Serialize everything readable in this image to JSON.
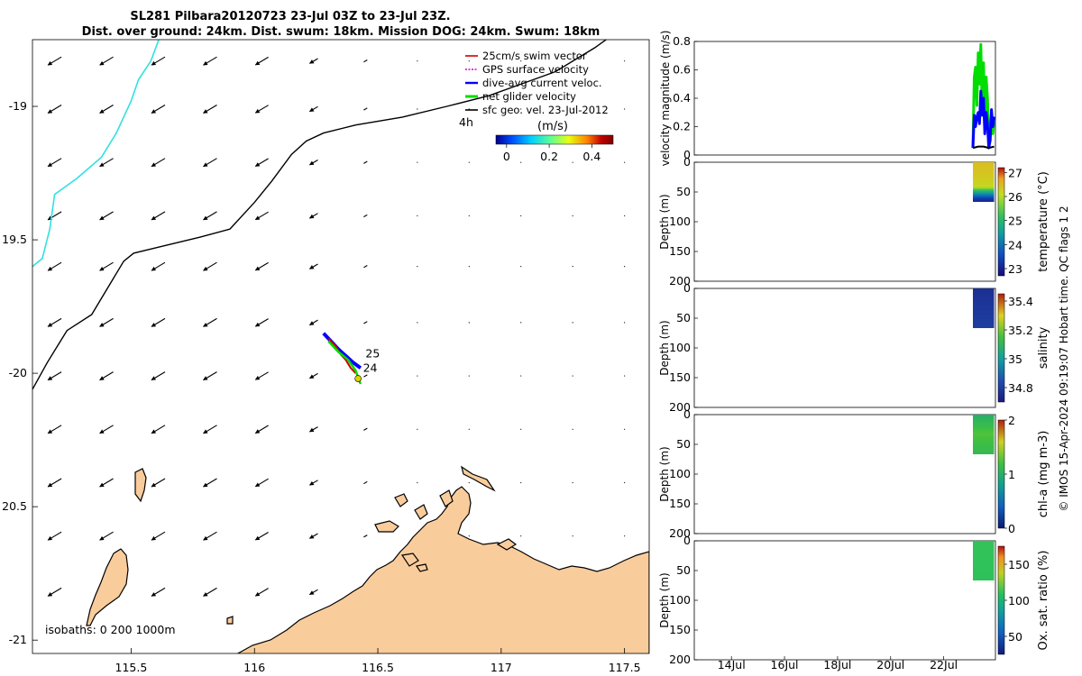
{
  "title_line1": "SL281 Pilbara20120723 23-Jul 03Z to 23-Jul 23Z.",
  "title_line2": "Dist. over ground: 24km. Dist. swum: 18km. Mission DOG: 24km. Swum: 18km",
  "credit": "© IMOS 15-Apr-2024 09:19:07 Hobart time. QC flags 1  2",
  "colors": {
    "land": "#f9cc9c",
    "coast": "#000000",
    "isobath_200": "#000000",
    "isobath_1000": "#33e0e0",
    "swim": "#cc0000",
    "gps": "#cc00cc",
    "current": "#0000ff",
    "net": "#00dd00",
    "sfc": "#000000"
  },
  "chart_data": [
    {
      "type": "map",
      "name": "track-map",
      "xlim": [
        115.1,
        117.6
      ],
      "ylim": [
        -21.05,
        -18.75
      ],
      "xticks": [
        115.5,
        116,
        116.5,
        117,
        117.5
      ],
      "xtick_labels": [
        "115.5",
        "116",
        "116.5",
        "117",
        "117.5"
      ],
      "yticks": [
        -19,
        -19.5,
        -20,
        -20.5,
        -21
      ],
      "ytick_labels": [
        "-19",
        "19.5",
        "-20",
        "20.5",
        "-21"
      ],
      "legend": {
        "position": "top-right",
        "entries": [
          "25cm/s swim vector",
          "GPS surface velocity",
          "dive-avg current veloc.",
          "net glider velocity",
          "sfc geo. vel. 23-Jul-2012"
        ]
      },
      "colorbar": {
        "label": "(m/s)",
        "range": [
          -0.05,
          0.5
        ],
        "ticks": [
          0,
          0.2,
          0.4
        ],
        "tick_labels": [
          "0",
          "0.2",
          "0.4"
        ],
        "colormap": [
          "#00008f",
          "#0050ff",
          "#00d0ff",
          "#60ff90",
          "#e8ff10",
          "#ff8000",
          "#c00000",
          "#800000"
        ]
      },
      "scale_label": "4h",
      "isobaths_label": "isobaths: 0   200  1000m",
      "track_labels": [
        {
          "text": "25",
          "lon": 116.45,
          "lat": -19.94
        },
        {
          "text": "24",
          "lon": 116.44,
          "lat": -19.995
        }
      ],
      "vector_grid": {
        "lons": [
          115.19,
          115.4,
          115.61,
          115.82,
          116.03,
          116.24,
          116.45,
          116.66,
          116.87,
          117.08,
          117.29,
          117.5
        ],
        "lats": [
          -18.83,
          -19.01,
          -19.21,
          -19.41,
          -19.6,
          -19.81,
          -20.01,
          -20.21,
          -20.41,
          -20.61,
          -20.82
        ],
        "west_u": 0.2,
        "east_u": 0.012,
        "west_v": -0.12,
        "east_v": -0.006
      },
      "isobath_1000m": [
        [
          115.1,
          -19.6
        ],
        [
          115.14,
          -19.57
        ],
        [
          115.17,
          -19.46
        ],
        [
          115.19,
          -19.33
        ],
        [
          115.28,
          -19.27
        ],
        [
          115.38,
          -19.19
        ],
        [
          115.44,
          -19.1
        ],
        [
          115.5,
          -18.98
        ],
        [
          115.53,
          -18.9
        ],
        [
          115.58,
          -18.83
        ],
        [
          115.62,
          -18.73
        ],
        [
          115.66,
          -18.62
        ],
        [
          115.76,
          -18.59
        ],
        [
          115.9,
          -18.5
        ],
        [
          116.0,
          -18.45
        ]
      ],
      "isobath_200m": [
        [
          115.1,
          -20.06
        ],
        [
          115.16,
          -19.96
        ],
        [
          115.24,
          -19.84
        ],
        [
          115.34,
          -19.78
        ],
        [
          115.47,
          -19.58
        ],
        [
          115.51,
          -19.55
        ],
        [
          115.6,
          -19.53
        ],
        [
          115.78,
          -19.49
        ],
        [
          115.9,
          -19.46
        ],
        [
          116.0,
          -19.36
        ],
        [
          116.07,
          -19.28
        ],
        [
          116.15,
          -19.18
        ],
        [
          116.21,
          -19.13
        ],
        [
          116.28,
          -19.1
        ],
        [
          116.41,
          -19.07
        ],
        [
          116.6,
          -19.04
        ],
        [
          116.78,
          -19.0
        ],
        [
          116.95,
          -18.96
        ],
        [
          117.1,
          -18.91
        ],
        [
          117.22,
          -18.87
        ],
        [
          117.38,
          -18.78
        ],
        [
          117.5,
          -18.7
        ]
      ],
      "tracks": {
        "current": [
          [
            116.28,
            -19.85
          ],
          [
            116.31,
            -19.88
          ],
          [
            116.34,
            -19.91
          ],
          [
            116.37,
            -19.935
          ],
          [
            116.4,
            -19.96
          ],
          [
            116.43,
            -19.98
          ]
        ],
        "swim": [
          [
            116.3,
            -19.87
          ],
          [
            116.33,
            -19.9
          ],
          [
            116.35,
            -19.93
          ],
          [
            116.37,
            -19.95
          ],
          [
            116.39,
            -19.98
          ],
          [
            116.41,
            -20.0
          ]
        ],
        "net": [
          [
            116.3,
            -19.88
          ],
          [
            116.34,
            -19.92
          ],
          [
            116.38,
            -19.95
          ],
          [
            116.41,
            -19.99
          ],
          [
            116.43,
            -20.04
          ]
        ]
      }
    },
    {
      "type": "line",
      "name": "velocity-panel",
      "ylabel": "velocity magnitude (m/s)",
      "ylim": [
        0,
        0.8
      ],
      "yticks": [
        0,
        0.2,
        0.4,
        0.6,
        0.8
      ],
      "ytick_labels": [
        "0",
        "0.2",
        "0.4",
        "0.6",
        "0.8"
      ],
      "xlim": [
        12.6,
        23.95
      ],
      "series": [
        {
          "color": "#00dd00",
          "x": [
            23.1,
            23.15,
            23.2,
            23.25,
            23.3,
            23.35,
            23.4,
            23.45,
            23.5,
            23.55,
            23.6,
            23.65,
            23.7,
            23.75,
            23.8,
            23.85,
            23.9
          ],
          "values": [
            0.05,
            0.55,
            0.62,
            0.35,
            0.72,
            0.5,
            0.78,
            0.3,
            0.65,
            0.2,
            0.55,
            0.4,
            0.12,
            0.1,
            0.3,
            0.15,
            0.25
          ]
        },
        {
          "color": "#0000ff",
          "x": [
            23.1,
            23.15,
            23.2,
            23.25,
            23.3,
            23.35,
            23.4,
            23.45,
            23.5,
            23.55,
            23.6,
            23.65,
            23.7,
            23.75,
            23.8,
            23.85,
            23.9
          ],
          "values": [
            0.05,
            0.28,
            0.2,
            0.27,
            0.3,
            0.22,
            0.45,
            0.28,
            0.4,
            0.15,
            0.3,
            0.22,
            0.05,
            0.1,
            0.32,
            0.2,
            0.27
          ]
        },
        {
          "color": "#000000",
          "x": [
            23.1,
            23.3,
            23.5,
            23.7,
            23.9
          ],
          "values": [
            0.05,
            0.06,
            0.06,
            0.05,
            0.06
          ]
        }
      ]
    },
    {
      "type": "heatmap",
      "name": "temperature-panel",
      "ylabel": "Depth (m)",
      "cblabel": "temperature (°C)",
      "ylim": [
        0,
        200
      ],
      "yticks": [
        0,
        50,
        100,
        150,
        200
      ],
      "ytick_labels": [
        "0",
        "50",
        "100",
        "150",
        "200"
      ],
      "xlim": [
        12.6,
        23.95
      ],
      "crange": [
        22.7,
        27.2
      ],
      "cticks": [
        27,
        26,
        25,
        24,
        23
      ],
      "ctick_labels": [
        "27",
        "26",
        "25",
        "24",
        "23"
      ],
      "data_x": [
        23.1,
        23.9
      ],
      "profile": [
        {
          "depth": 0,
          "value": 26.1
        },
        {
          "depth": 20,
          "value": 26.0
        },
        {
          "depth": 40,
          "value": 25.8
        },
        {
          "depth": 50,
          "value": 24.2
        },
        {
          "depth": 60,
          "value": 23.2
        },
        {
          "depth": 66,
          "value": 22.9
        }
      ]
    },
    {
      "type": "heatmap",
      "name": "salinity-panel",
      "ylabel": "Depth (m)",
      "cblabel": "salinity",
      "ylim": [
        0,
        200
      ],
      "yticks": [
        0,
        50,
        100,
        150,
        200
      ],
      "ytick_labels": [
        "0",
        "50",
        "100",
        "150",
        "200"
      ],
      "xlim": [
        12.6,
        23.95
      ],
      "crange": [
        34.7,
        35.45
      ],
      "cticks": [
        35.4,
        35.2,
        35,
        34.8
      ],
      "ctick_labels": [
        "35.4",
        "35.2",
        "35",
        "34.8"
      ],
      "data_x": [
        23.1,
        23.9
      ],
      "profile": [
        {
          "depth": 0,
          "value": 34.76
        },
        {
          "depth": 30,
          "value": 34.78
        },
        {
          "depth": 66,
          "value": 34.8
        }
      ]
    },
    {
      "type": "heatmap",
      "name": "chla-panel",
      "ylabel": "Depth (m)",
      "cblabel": "chl-a (mg m-3)",
      "ylim": [
        0,
        200
      ],
      "yticks": [
        0,
        50,
        100,
        150,
        200
      ],
      "ytick_labels": [
        "0",
        "50",
        "100",
        "150",
        "200"
      ],
      "xlim": [
        12.6,
        23.95
      ],
      "crange": [
        0,
        2
      ],
      "cticks": [
        2,
        1,
        0
      ],
      "ctick_labels": [
        "2",
        "1",
        "0"
      ],
      "data_x": [
        23.1,
        23.9
      ],
      "profile": [
        {
          "depth": 0,
          "value": 1.0
        },
        {
          "depth": 30,
          "value": 1.25
        },
        {
          "depth": 66,
          "value": 1.1
        }
      ]
    },
    {
      "type": "heatmap",
      "name": "oxygen-panel",
      "ylabel": "Depth (m)",
      "cblabel": "Ox. sat. ratio (%)",
      "ylim": [
        0,
        200
      ],
      "yticks": [
        0,
        50,
        100,
        150,
        200
      ],
      "ytick_labels": [
        "0",
        "50",
        "100",
        "150",
        "200"
      ],
      "xlim": [
        12.6,
        23.95
      ],
      "crange": [
        25,
        175
      ],
      "cticks": [
        150,
        100,
        50
      ],
      "ctick_labels": [
        "150",
        "100",
        "50"
      ],
      "data_x": [
        23.1,
        23.9
      ],
      "profile": [
        {
          "depth": 0,
          "value": 103
        },
        {
          "depth": 66,
          "value": 102
        }
      ],
      "xticks": [
        14,
        16,
        18,
        20,
        22
      ],
      "xtick_labels": [
        "14Jul",
        "16Jul",
        "18Jul",
        "20Jul",
        "22Jul"
      ]
    }
  ]
}
